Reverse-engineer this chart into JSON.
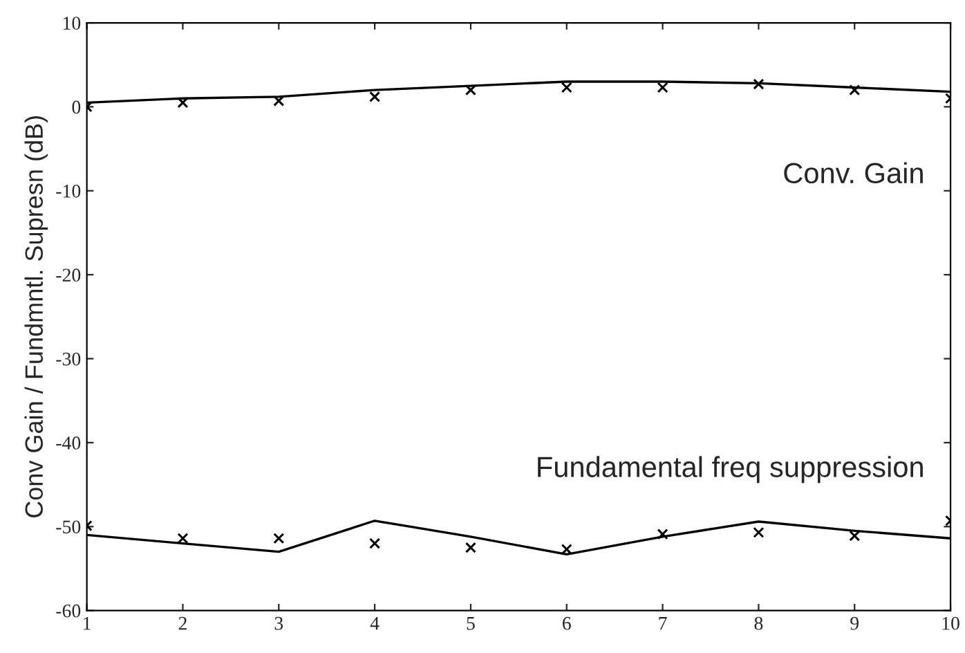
{
  "chart_data": {
    "type": "line",
    "ylabel": "Conv Gain / Fundmntl. Supresn (dB)",
    "x": [
      1,
      2,
      3,
      4,
      5,
      6,
      7,
      8,
      9,
      10
    ],
    "series": [
      {
        "color": "#000000",
        "marker": "none",
        "line_style": "solid",
        "values": [
          0.5,
          1,
          1.2,
          2,
          2.5,
          3,
          3,
          2.8,
          2.3,
          1.8
        ]
      },
      {
        "type": "scatter",
        "color": "#000000",
        "marker": "cross",
        "values": [
          0,
          0.5,
          0.7,
          1.2,
          2,
          2.3,
          2.3,
          2.7,
          2,
          1
        ]
      },
      {
        "color": "#000000",
        "marker": "none",
        "line_style": "solid",
        "values": [
          -51,
          -52,
          -53,
          -49.3,
          -51.2,
          -53.3,
          -51.2,
          -49.4,
          -50.5,
          -51.4
        ]
      },
      {
        "type": "scatter",
        "color": "#000000",
        "marker": "cross",
        "values": [
          -49.9,
          -51.4,
          -51.4,
          -52,
          -52.5,
          -52.7,
          -50.9,
          -50.7,
          -51.1,
          -49.3
        ]
      }
    ],
    "annotations": [
      "Conv. Gain",
      "Fundamental freq suppression"
    ],
    "xlim": [
      1,
      10
    ],
    "xticks": [
      1,
      2,
      3,
      4,
      5,
      6,
      7,
      8,
      9,
      10
    ],
    "ylim": [
      -60,
      10
    ],
    "yticks": [
      -60,
      -50,
      -40,
      -30,
      -20,
      -10,
      0,
      10
    ],
    "grid": false,
    "legend": false
  }
}
